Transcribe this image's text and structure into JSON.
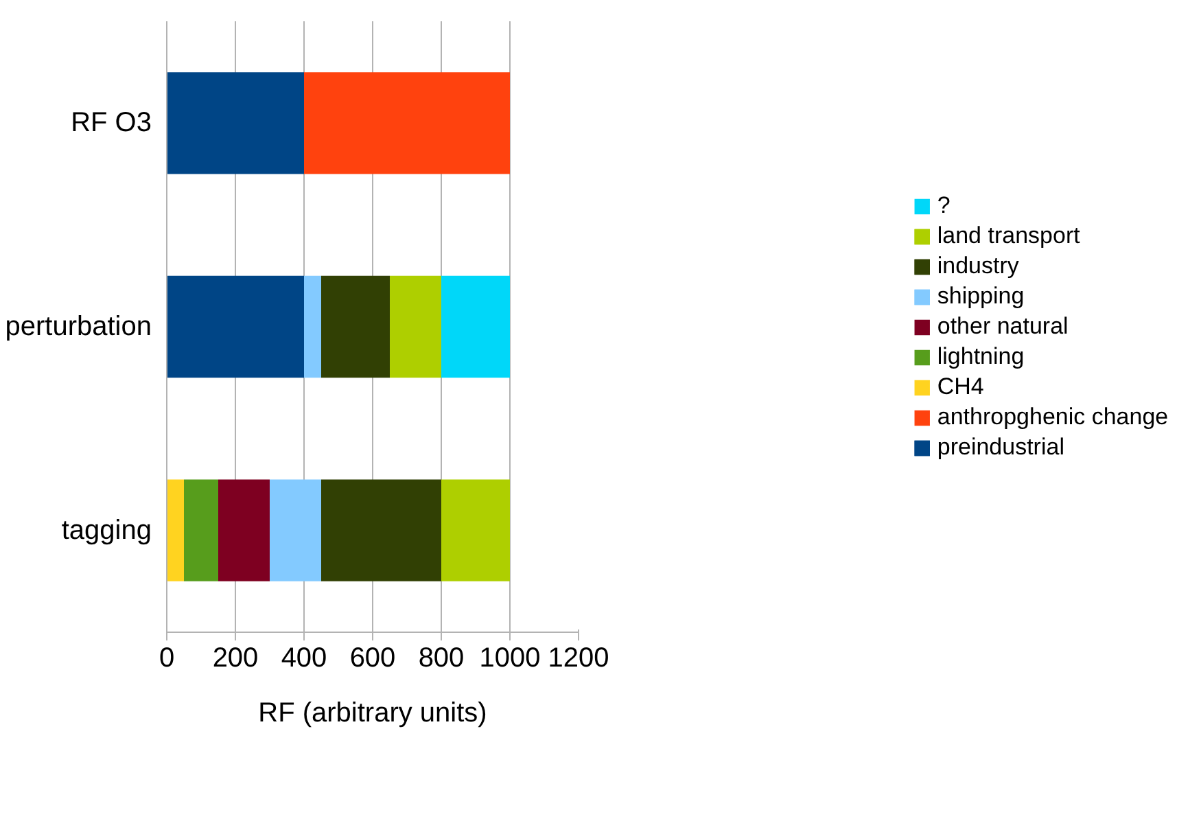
{
  "chart_data": {
    "type": "bar",
    "orientation": "horizontal",
    "stacked": true,
    "xlabel": "RF (arbitrary units)",
    "categories": [
      "RF O3",
      "perturbation",
      "tagging"
    ],
    "series": [
      {
        "name": "preindustrial",
        "color": "#004586",
        "values": [
          400,
          400,
          null
        ]
      },
      {
        "name": "anthropghenic change",
        "color": "#ff420e",
        "values": [
          600,
          null,
          null
        ]
      },
      {
        "name": "CH4",
        "color": "#ffd320",
        "values": [
          null,
          null,
          50
        ]
      },
      {
        "name": "lightning",
        "color": "#579d1c",
        "values": [
          null,
          null,
          100
        ]
      },
      {
        "name": "other natural",
        "color": "#7e0021",
        "values": [
          null,
          null,
          150
        ]
      },
      {
        "name": "shipping",
        "color": "#83caff",
        "values": [
          null,
          50,
          150
        ]
      },
      {
        "name": "industry",
        "color": "#314004",
        "values": [
          null,
          200,
          350
        ]
      },
      {
        "name": "land transport",
        "color": "#aecf00",
        "values": [
          null,
          150,
          200
        ]
      },
      {
        "name": "?",
        "color": "#00d7f9",
        "values": [
          null,
          200,
          null
        ]
      }
    ],
    "xlim": [
      0,
      1200
    ],
    "xticks": [
      0,
      200,
      400,
      600,
      800,
      1000,
      1200
    ],
    "grid": "x",
    "legend": "right"
  }
}
